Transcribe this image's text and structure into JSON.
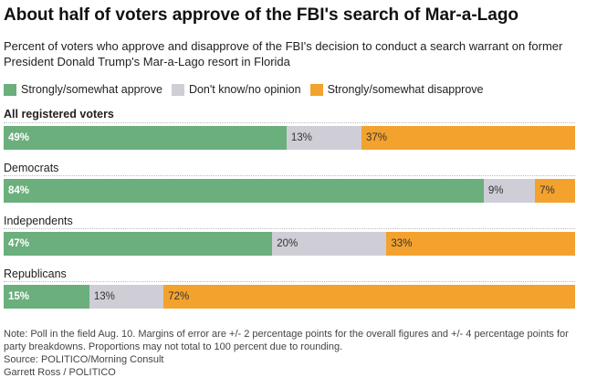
{
  "header": {
    "title": "About half of voters approve of the FBI's search of Mar-a-Lago",
    "subtitle": "Percent of voters who approve and disapprove of the FBI's decision to conduct a search warrant on former President Donald Trump's Mar-a-Lago resort in Florida"
  },
  "legend": {
    "items": [
      {
        "label": "Strongly/somewhat approve",
        "color": "#6aaf7c"
      },
      {
        "label": "Don't know/no opinion",
        "color": "#cfcdd6"
      },
      {
        "label": "Strongly/somewhat disapprove",
        "color": "#f3a22e"
      }
    ]
  },
  "chart_data": {
    "type": "bar",
    "orientation": "horizontal",
    "stacked": true,
    "title": "About half of voters approve of the FBI's search of Mar-a-Lago",
    "subtitle": "Percent of voters who approve and disapprove of the FBI's decision to conduct a search warrant on former President Donald Trump's Mar-a-Lago resort in Florida",
    "categories": [
      "All registered voters",
      "Democrats",
      "Independents",
      "Republicans"
    ],
    "series": [
      {
        "name": "Strongly/somewhat approve",
        "values": [
          49,
          84,
          47,
          15
        ],
        "labels": [
          "49%",
          "84%",
          "47%",
          "15%"
        ]
      },
      {
        "name": "Don't know/no opinion",
        "values": [
          13,
          9,
          20,
          13
        ],
        "labels": [
          "13%",
          "9%",
          "20%",
          "13%"
        ]
      },
      {
        "name": "Strongly/somewhat disapprove",
        "values": [
          37,
          7,
          33,
          72
        ],
        "labels": [
          "37%",
          "7%",
          "33%",
          "72%"
        ]
      }
    ],
    "legend_position": "top-left"
  },
  "footer": {
    "note": "Note: Poll in the field Aug. 10. Margins of error are +/- 2 percentage points for the overall figures and +/- 4 percentage points for party breakdowns. Proportions may not total to 100 percent due to rounding.",
    "source": "Source: POLITICO/Morning Consult",
    "credit": "Garrett Ross / POLITICO"
  }
}
